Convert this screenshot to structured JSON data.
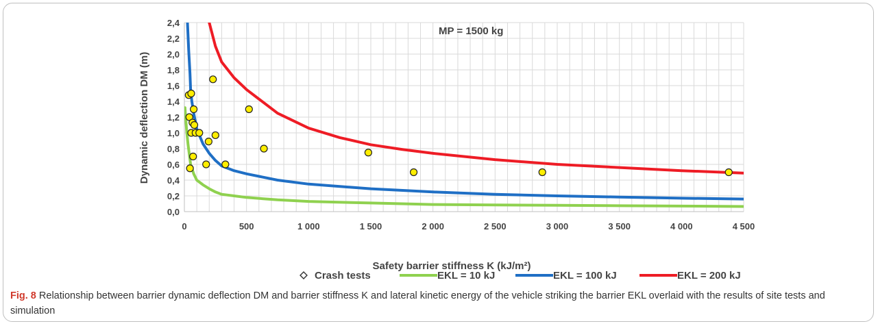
{
  "chart_data": {
    "type": "line",
    "title": "",
    "annotation": "MP = 1500 kg",
    "xlabel": "Safety barrier stiffness K (kJ/m²)",
    "ylabel": "Dynamic deflection DM (m)",
    "xlim": [
      0,
      4500
    ],
    "ylim": [
      0,
      2.4
    ],
    "x_ticks": [
      0,
      500,
      1000,
      1500,
      2000,
      2500,
      3000,
      3500,
      4000,
      4500
    ],
    "x_tick_labels": [
      "0",
      "500",
      "1 000",
      "1 500",
      "2 000",
      "2 500",
      "3 000",
      "3 500",
      "4 000",
      "4 500"
    ],
    "y_ticks": [
      0,
      0.2,
      0.4,
      0.6,
      0.8,
      1.0,
      1.2,
      1.4,
      1.6,
      1.8,
      2.0,
      2.2,
      2.4
    ],
    "y_tick_labels": [
      "0,0",
      "0,2",
      "0,4",
      "0,6",
      "0,8",
      "1,0",
      "1,2",
      "1,4",
      "1,6",
      "1,8",
      "2,0",
      "2,2",
      "2,4"
    ],
    "grid": true,
    "legend_position": "bottom",
    "series": [
      {
        "name": "Crash tests",
        "kind": "scatter",
        "color": "#ffee00",
        "stroke": "#222222",
        "points": [
          [
            35,
            1.48
          ],
          [
            55,
            1.5
          ],
          [
            230,
            1.68
          ],
          [
            75,
            1.3
          ],
          [
            520,
            1.3
          ],
          [
            40,
            1.2
          ],
          [
            65,
            1.13
          ],
          [
            80,
            1.1
          ],
          [
            250,
            0.97
          ],
          [
            55,
            1.0
          ],
          [
            90,
            1.0
          ],
          [
            120,
            1.0
          ],
          [
            195,
            0.89
          ],
          [
            640,
            0.8
          ],
          [
            1480,
            0.75
          ],
          [
            70,
            0.7
          ],
          [
            175,
            0.6
          ],
          [
            330,
            0.6
          ],
          [
            45,
            0.55
          ],
          [
            1845,
            0.5
          ],
          [
            2880,
            0.5
          ],
          [
            4380,
            0.5
          ]
        ]
      },
      {
        "name": "EKL = 10 kJ",
        "kind": "line",
        "color": "#8fd14f",
        "points": [
          [
            5,
            1.32
          ],
          [
            10,
            1.2
          ],
          [
            20,
            1.0
          ],
          [
            30,
            0.85
          ],
          [
            50,
            0.6
          ],
          [
            75,
            0.48
          ],
          [
            100,
            0.4
          ],
          [
            150,
            0.34
          ],
          [
            200,
            0.29
          ],
          [
            250,
            0.25
          ],
          [
            300,
            0.22
          ],
          [
            400,
            0.2
          ],
          [
            500,
            0.18
          ],
          [
            750,
            0.15
          ],
          [
            1000,
            0.13
          ],
          [
            1500,
            0.11
          ],
          [
            2000,
            0.09
          ],
          [
            2500,
            0.085
          ],
          [
            3000,
            0.08
          ],
          [
            3500,
            0.075
          ],
          [
            4000,
            0.07
          ],
          [
            4500,
            0.065
          ]
        ]
      },
      {
        "name": "EKL = 100 kJ",
        "kind": "line",
        "color": "#1f6fc5",
        "points": [
          [
            25,
            2.4
          ],
          [
            35,
            2.05
          ],
          [
            45,
            1.75
          ],
          [
            50,
            1.55
          ],
          [
            60,
            1.4
          ],
          [
            75,
            1.25
          ],
          [
            100,
            1.05
          ],
          [
            150,
            0.86
          ],
          [
            200,
            0.74
          ],
          [
            250,
            0.65
          ],
          [
            300,
            0.58
          ],
          [
            400,
            0.52
          ],
          [
            500,
            0.48
          ],
          [
            750,
            0.4
          ],
          [
            1000,
            0.35
          ],
          [
            1500,
            0.29
          ],
          [
            2000,
            0.25
          ],
          [
            2500,
            0.22
          ],
          [
            3000,
            0.2
          ],
          [
            3500,
            0.185
          ],
          [
            4000,
            0.17
          ],
          [
            4500,
            0.16
          ]
        ]
      },
      {
        "name": "EKL = 200 kJ",
        "kind": "line",
        "color": "#ee1c25",
        "points": [
          [
            200,
            2.4
          ],
          [
            250,
            2.1
          ],
          [
            300,
            1.9
          ],
          [
            400,
            1.7
          ],
          [
            500,
            1.55
          ],
          [
            600,
            1.43
          ],
          [
            750,
            1.25
          ],
          [
            1000,
            1.06
          ],
          [
            1250,
            0.94
          ],
          [
            1500,
            0.85
          ],
          [
            1750,
            0.79
          ],
          [
            2000,
            0.74
          ],
          [
            2500,
            0.66
          ],
          [
            3000,
            0.6
          ],
          [
            3500,
            0.56
          ],
          [
            4000,
            0.52
          ],
          [
            4500,
            0.49
          ]
        ]
      }
    ]
  },
  "caption": {
    "label": "Fig. 8",
    "text": " Relationship between barrier dynamic deflection DM and barrier stiffness K and lateral kinetic energy of the vehicle striking the barrier EKL overlaid with the results of site tests and simulation"
  }
}
